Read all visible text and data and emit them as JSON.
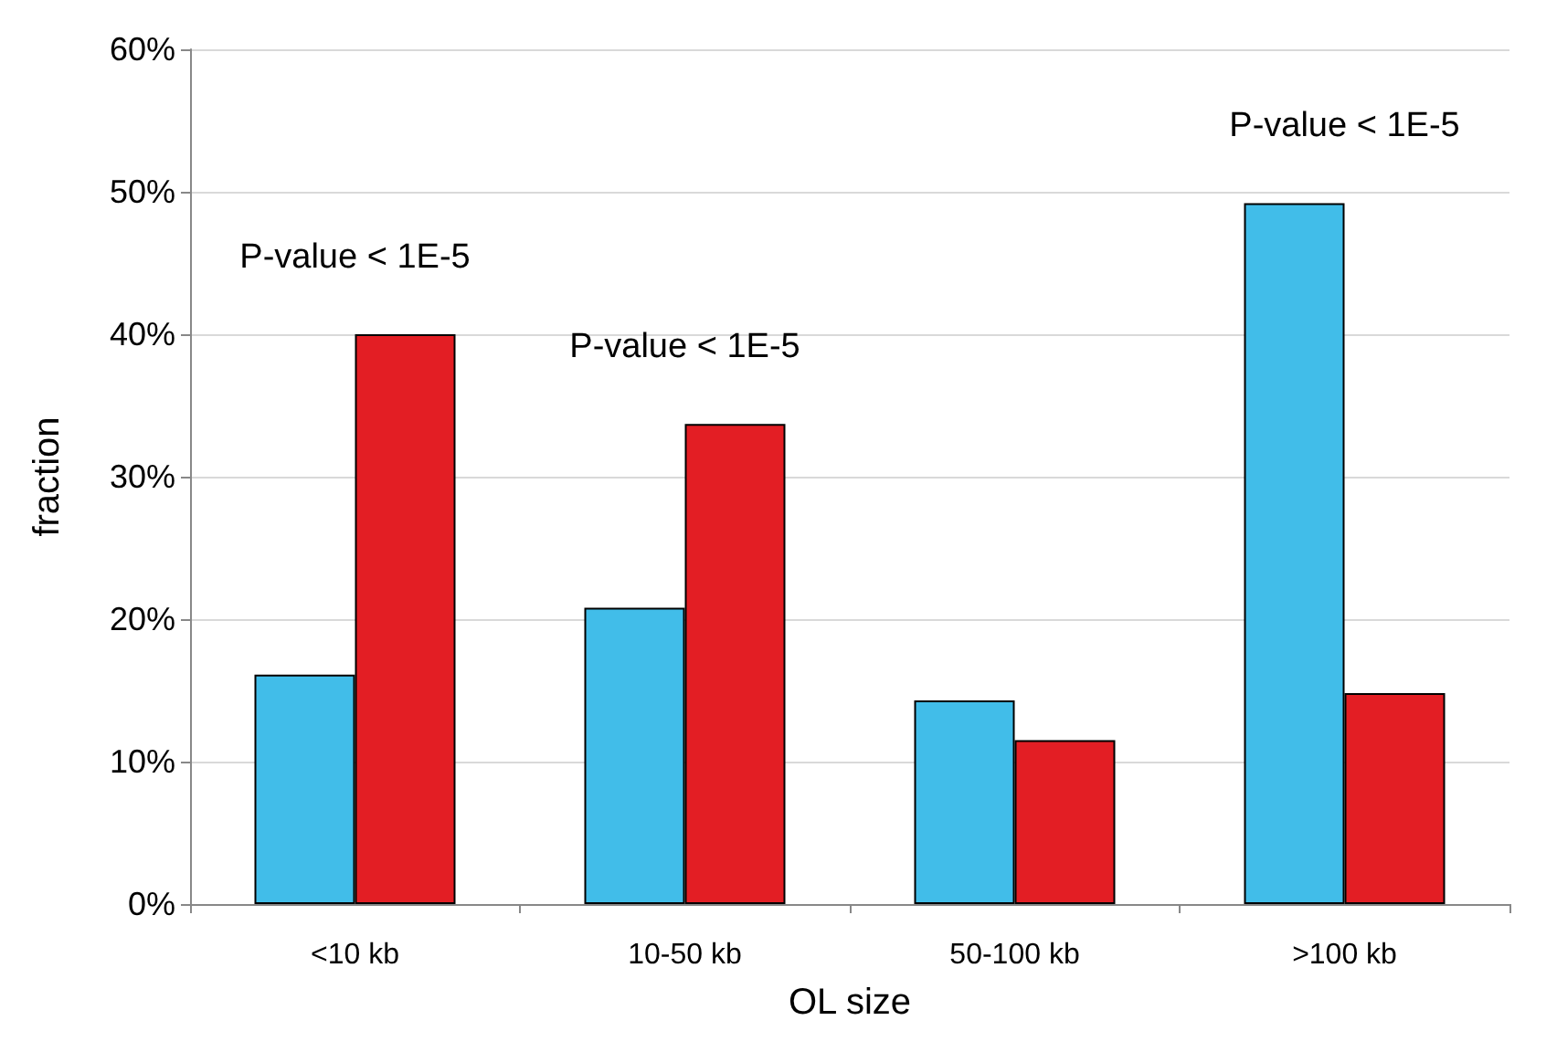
{
  "chart_data": {
    "type": "bar",
    "xlabel": "OL size",
    "ylabel": "fraction",
    "categories": [
      "<10 kb",
      "10-50 kb",
      "50-100 kb",
      ">100 kb"
    ],
    "series": [
      {
        "color": "#41bde9",
        "values": [
          16.1,
          20.8,
          14.3,
          49.2
        ]
      },
      {
        "color": "#e31e24",
        "values": [
          40.0,
          33.7,
          11.5,
          14.8
        ]
      }
    ],
    "ylim": [
      0,
      60
    ],
    "yticks": [
      {
        "value": 0,
        "label": "0%"
      },
      {
        "value": 10,
        "label": "10%"
      },
      {
        "value": 20,
        "label": "20%"
      },
      {
        "value": 30,
        "label": "30%"
      },
      {
        "value": 40,
        "label": "40%"
      },
      {
        "value": 50,
        "label": "50%"
      },
      {
        "value": 60,
        "label": "60%"
      }
    ],
    "grid": "y",
    "annotations": [
      "P-value < 1E-5",
      "P-value < 1E-5",
      "P-value < 1E-5"
    ]
  }
}
